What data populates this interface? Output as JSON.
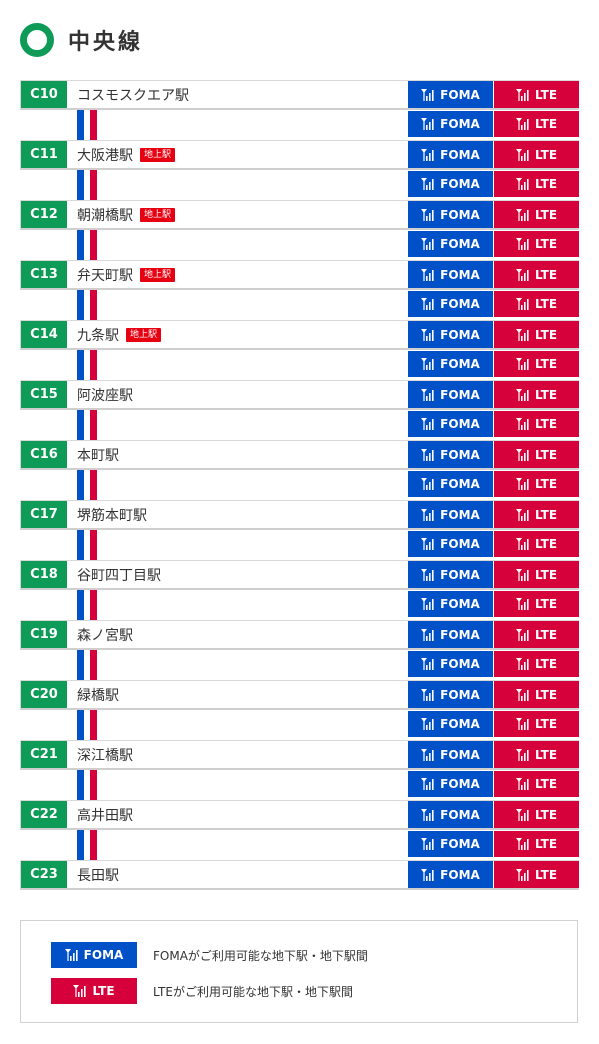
{
  "header": {
    "title": "中央線"
  },
  "colors": {
    "line_green": "#0e9a57",
    "foma_blue": "#0050c8",
    "lte_red": "#d6003a",
    "ground_badge": "#e60012"
  },
  "tags": {
    "foma_label": "FOMA",
    "lte_label": "LTE",
    "icon": "antenna-icon"
  },
  "stations": [
    {
      "code": "C10",
      "name": "コスモスクエア駅",
      "badge": ""
    },
    {
      "code": "C11",
      "name": "大阪港駅",
      "badge": "地上駅"
    },
    {
      "code": "C12",
      "name": "朝潮橋駅",
      "badge": "地上駅"
    },
    {
      "code": "C13",
      "name": "弁天町駅",
      "badge": "地上駅"
    },
    {
      "code": "C14",
      "name": "九条駅",
      "badge": "地上駅"
    },
    {
      "code": "C15",
      "name": "阿波座駅",
      "badge": ""
    },
    {
      "code": "C16",
      "name": "本町駅",
      "badge": ""
    },
    {
      "code": "C17",
      "name": "堺筋本町駅",
      "badge": ""
    },
    {
      "code": "C18",
      "name": "谷町四丁目駅",
      "badge": ""
    },
    {
      "code": "C19",
      "name": "森ノ宮駅",
      "badge": ""
    },
    {
      "code": "C20",
      "name": "緑橋駅",
      "badge": ""
    },
    {
      "code": "C21",
      "name": "深江橋駅",
      "badge": ""
    },
    {
      "code": "C22",
      "name": "高井田駅",
      "badge": ""
    },
    {
      "code": "C23",
      "name": "長田駅",
      "badge": ""
    }
  ],
  "legend": {
    "foma_label": "FOMA",
    "foma_text": "FOMAがご利用可能な地下駅・地下駅間",
    "lte_label": "LTE",
    "lte_text": "LTEがご利用可能な地下駅・地下駅間"
  }
}
